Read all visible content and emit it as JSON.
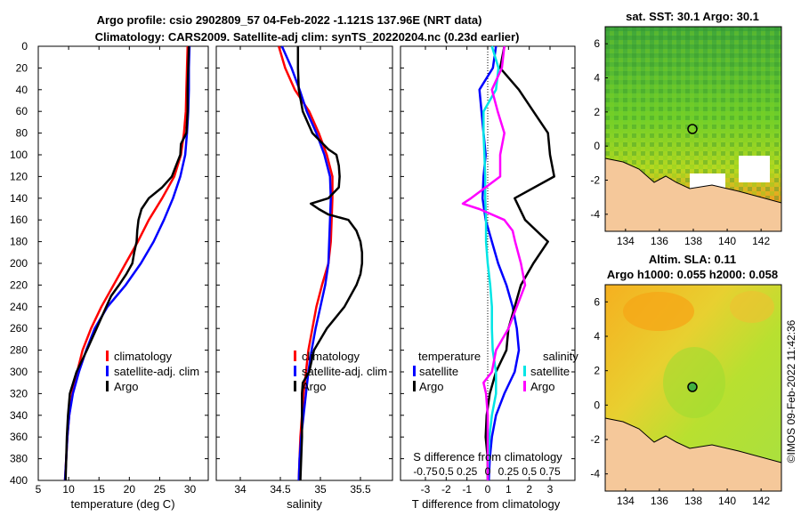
{
  "header": {
    "line1": "Argo profile: csio 2902809_57 04-Feb-2022 -1.121S 137.96E (NRT data)",
    "line2": "Climatology: CARS2009. Satellite-adj clim: synTS_20220204.nc (0.23d earlier)"
  },
  "colors": {
    "climatology": "#ff0000",
    "satellite": "#0000ff",
    "argo": "#000000",
    "s_satellite": "#00e5e5",
    "s_argo": "#ff00ff",
    "land": "#f5c89a"
  },
  "chart_data": [
    {
      "type": "line",
      "name": "temperature",
      "xlabel": "temperature (deg C)",
      "ylabel": "",
      "xlim": [
        5,
        33
      ],
      "ylim": [
        400,
        0
      ],
      "xticks": [
        "5",
        "10",
        "15",
        "20",
        "25",
        "30"
      ],
      "yticks": [
        "0",
        "20",
        "40",
        "60",
        "80",
        "100",
        "120",
        "140",
        "160",
        "180",
        "200",
        "220",
        "240",
        "260",
        "280",
        "300",
        "320",
        "340",
        "360",
        "380",
        "400"
      ],
      "legend": [
        "climatology",
        "satellite-adj. clim",
        "Argo"
      ],
      "series": [
        {
          "name": "climatology",
          "depth": [
            0,
            20,
            40,
            60,
            80,
            100,
            120,
            140,
            160,
            180,
            200,
            220,
            240,
            260,
            280,
            300,
            320,
            340,
            360,
            380,
            400
          ],
          "values": [
            29.6,
            29.5,
            29.4,
            29.3,
            29.0,
            28.5,
            27.4,
            25.4,
            23.2,
            21.4,
            19.4,
            17.4,
            15.4,
            13.7,
            12.3,
            11.4,
            10.6,
            10.1,
            9.8,
            9.6,
            9.4
          ]
        },
        {
          "name": "satellite-adj. clim",
          "depth": [
            0,
            20,
            40,
            60,
            80,
            100,
            120,
            140,
            160,
            180,
            200,
            220,
            240,
            260,
            280,
            300,
            320,
            340,
            360,
            380,
            400
          ],
          "values": [
            29.9,
            29.8,
            29.8,
            29.7,
            29.5,
            29.2,
            28.4,
            27.2,
            25.7,
            24.0,
            21.9,
            19.4,
            16.4,
            14.3,
            12.9,
            11.7,
            10.7,
            10.1,
            9.8,
            9.6,
            9.4
          ]
        },
        {
          "name": "Argo",
          "depth": [
            0,
            20,
            40,
            60,
            80,
            90,
            100,
            110,
            120,
            130,
            140,
            150,
            160,
            170,
            180,
            190,
            200,
            210,
            220,
            230,
            240,
            260,
            280,
            300,
            320,
            340,
            360,
            380,
            400
          ],
          "values": [
            29.8,
            29.7,
            29.6,
            29.6,
            29.4,
            28.5,
            28.4,
            27.7,
            27.0,
            25.4,
            23.2,
            22.0,
            21.5,
            21.3,
            21.2,
            20.8,
            20.5,
            19.5,
            18.3,
            17.0,
            16.2,
            14.6,
            13.0,
            11.3,
            10.2,
            9.9,
            9.7,
            9.6,
            9.5
          ]
        }
      ]
    },
    {
      "type": "line",
      "name": "salinity",
      "xlabel": "salinity",
      "xlim": [
        33.7,
        35.9
      ],
      "ylim": [
        400,
        0
      ],
      "xticks": [
        "34",
        "34.5",
        "35",
        "35.5"
      ],
      "legend": [
        "climatology",
        "satellite-adj. clim",
        "Argo"
      ],
      "series": [
        {
          "name": "climatology",
          "depth": [
            0,
            20,
            40,
            60,
            80,
            100,
            120,
            140,
            160,
            180,
            200,
            220,
            240,
            260,
            280,
            300,
            320,
            340,
            360,
            380,
            400
          ],
          "values": [
            34.48,
            34.56,
            34.68,
            34.86,
            34.98,
            35.08,
            35.15,
            35.15,
            35.14,
            35.13,
            35.1,
            35.02,
            34.95,
            34.9,
            34.85,
            34.82,
            34.79,
            34.77,
            34.75,
            34.74,
            34.73
          ]
        },
        {
          "name": "satellite-adj. clim",
          "depth": [
            0,
            20,
            40,
            60,
            80,
            100,
            120,
            140,
            160,
            180,
            200,
            220,
            240,
            260,
            280,
            300,
            320,
            340,
            360,
            380,
            400
          ],
          "values": [
            34.52,
            34.64,
            34.74,
            34.83,
            34.95,
            35.05,
            35.12,
            35.13,
            35.12,
            35.11,
            35.1,
            35.06,
            35.0,
            34.94,
            34.89,
            34.85,
            34.82,
            34.79,
            34.76,
            34.74,
            34.73
          ]
        },
        {
          "name": "Argo",
          "depth": [
            0,
            20,
            40,
            60,
            80,
            95,
            100,
            110,
            120,
            130,
            140,
            145,
            150,
            155,
            160,
            170,
            180,
            190,
            200,
            210,
            220,
            240,
            260,
            280,
            300,
            310,
            320,
            340,
            360,
            380,
            400
          ],
          "values": [
            34.72,
            34.72,
            34.73,
            34.78,
            34.9,
            35.1,
            35.2,
            35.23,
            35.24,
            35.23,
            35.1,
            34.88,
            34.98,
            35.1,
            35.35,
            35.45,
            35.5,
            35.52,
            35.52,
            35.5,
            35.45,
            35.3,
            35.08,
            34.92,
            34.86,
            34.78,
            34.77,
            34.77,
            34.77,
            34.76,
            34.75
          ]
        }
      ]
    },
    {
      "type": "line",
      "name": "difference",
      "xlabel": "T difference from climatology",
      "xlabel_top": "S difference from climatology",
      "xlim": [
        -4.2,
        4.2
      ],
      "ylim": [
        400,
        0
      ],
      "xticks": [
        "-3",
        "-2",
        "-1",
        "0",
        "1",
        "2",
        "3"
      ],
      "xticks_top": [
        "-0.75",
        "0.5",
        "0.25",
        "0",
        "0.25",
        "0.5",
        "0.75"
      ],
      "legend_t_title": "temperature",
      "legend_s_title": "salinity",
      "legend": [
        "satellite",
        "Argo",
        "satellite",
        "Argo"
      ],
      "series": [
        {
          "name": "T satellite",
          "depth": [
            0,
            20,
            40,
            60,
            80,
            100,
            120,
            140,
            160,
            180,
            200,
            220,
            240,
            260,
            280,
            300,
            320,
            340,
            360,
            380,
            400
          ],
          "values": [
            0.4,
            0.25,
            -0.4,
            -0.3,
            -0.2,
            -0.1,
            -0.2,
            -0.25,
            -0.1,
            0.2,
            0.5,
            0.9,
            1.2,
            1.4,
            1.5,
            1.3,
            0.8,
            0.4,
            0.2,
            0.1,
            0.05
          ]
        },
        {
          "name": "T Argo",
          "depth": [
            0,
            20,
            40,
            60,
            80,
            100,
            120,
            140,
            160,
            180,
            200,
            220,
            240,
            260,
            280,
            300,
            320,
            340,
            360,
            380,
            400
          ],
          "values": [
            0.8,
            0.6,
            1.5,
            2.2,
            2.9,
            3.0,
            3.2,
            1.3,
            1.8,
            2.9,
            2.2,
            1.6,
            1.3,
            1.0,
            0.9,
            0.4,
            0.1,
            -0.05,
            -0.1,
            0.0,
            0.0
          ]
        },
        {
          "name": "S satellite",
          "depth": [
            0,
            20,
            40,
            60,
            80,
            100,
            120,
            140,
            160,
            180,
            200,
            220,
            240,
            260,
            280,
            300,
            320,
            340,
            360,
            380,
            400
          ],
          "values": [
            0.05,
            0.13,
            0.1,
            -0.05,
            -0.05,
            -0.04,
            -0.03,
            -0.03,
            -0.02,
            -0.02,
            0.0,
            0.03,
            0.05,
            0.05,
            0.06,
            0.1,
            0.1,
            0.05,
            0.02,
            0.01,
            0.0
          ]
        },
        {
          "name": "S Argo",
          "depth": [
            0,
            20,
            40,
            60,
            80,
            100,
            120,
            140,
            145,
            150,
            160,
            170,
            180,
            200,
            220,
            240,
            260,
            280,
            300,
            310,
            320,
            340,
            360,
            380,
            400
          ],
          "values": [
            0.2,
            0.17,
            0.05,
            0.12,
            0.2,
            0.15,
            0.15,
            -0.2,
            -0.3,
            -0.1,
            0.2,
            0.3,
            0.33,
            0.4,
            0.45,
            0.35,
            0.25,
            0.1,
            0.05,
            -0.05,
            -0.02,
            0.0,
            0.0,
            0.0,
            0.0
          ]
        }
      ]
    },
    {
      "type": "heatmap",
      "name": "sst_map",
      "title": "sat. SST: 30.1 Argo: 30.1",
      "xticks": [
        "134",
        "136",
        "138",
        "140",
        "142"
      ],
      "yticks": [
        "6",
        "4",
        "2",
        "0",
        "-2",
        "-4"
      ]
    },
    {
      "type": "heatmap",
      "name": "sla_map",
      "title": "Altim. SLA: 0.11",
      "subtitle": "Argo h1000: 0.055 h2000: 0.058",
      "xticks": [
        "134",
        "136",
        "138",
        "140",
        "142"
      ],
      "yticks": [
        "6",
        "4",
        "2",
        "0",
        "-2",
        "-4"
      ]
    }
  ],
  "credit": "©IMOS 09-Feb-2022 11:42:36"
}
